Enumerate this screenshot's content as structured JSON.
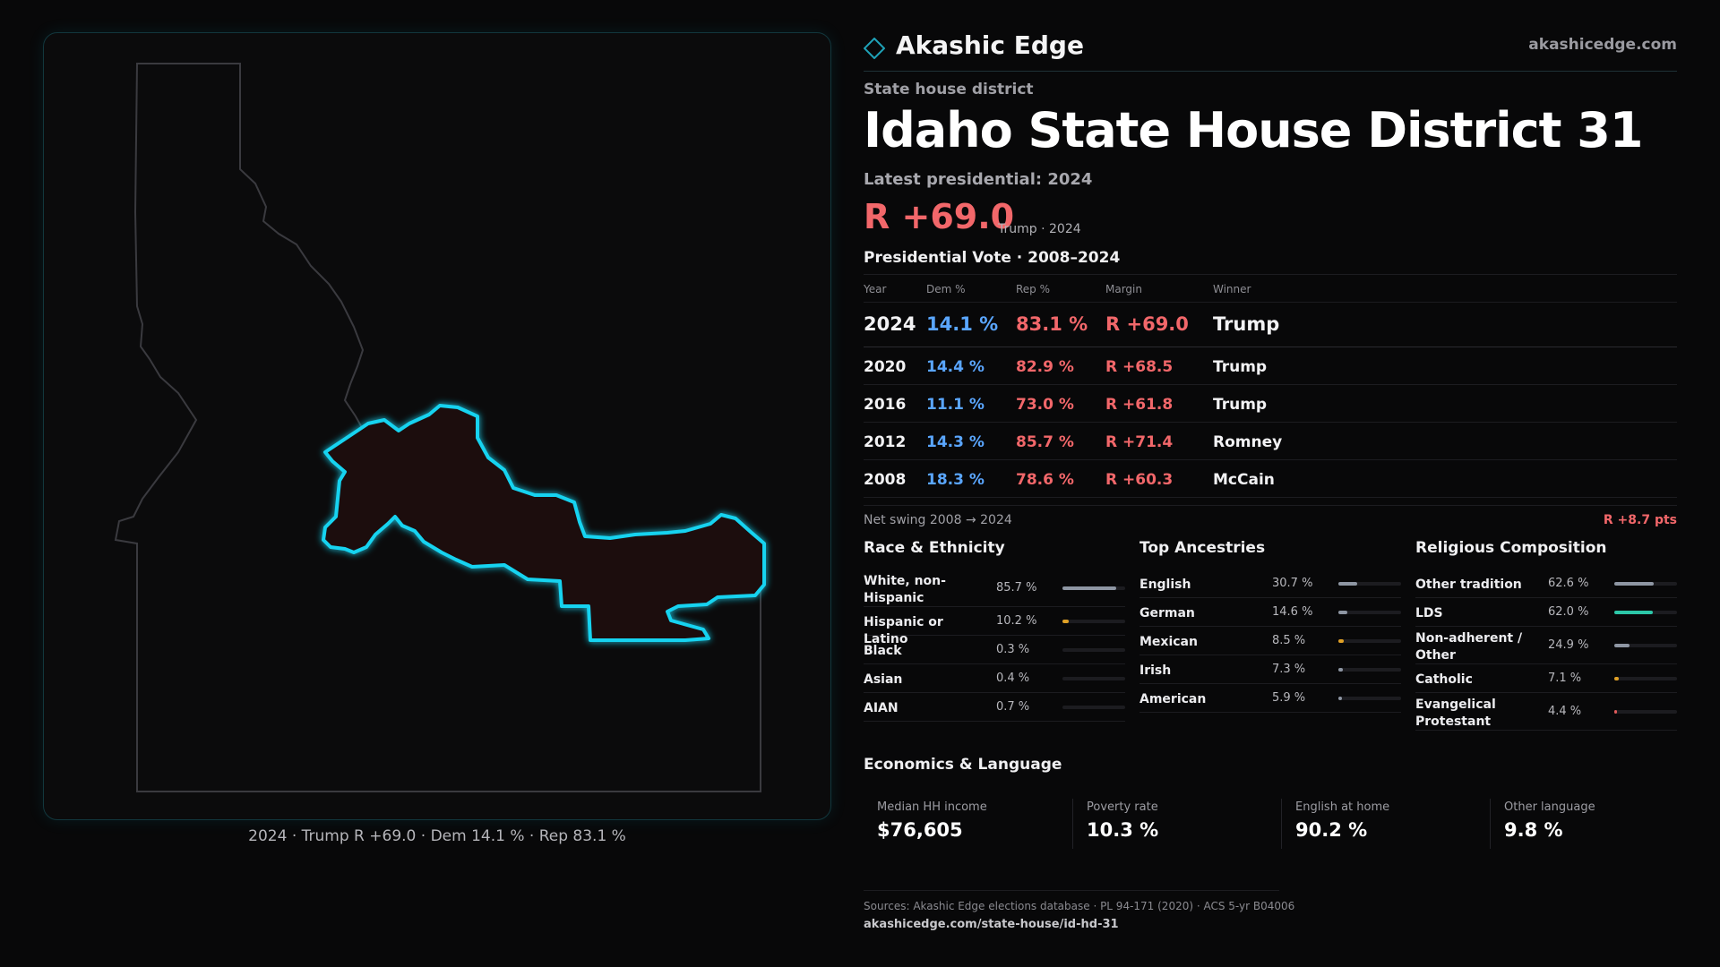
{
  "map": {
    "caption": "2024 · Trump R +69.0 · Dem 14.1 % · Rep 83.1 %",
    "highlight_color": "#19d3f0",
    "district_fill": "#1c1011",
    "state_outline_color": "#3a3a3f"
  },
  "brand": {
    "name": "Akashic Edge",
    "site": "akashicedge.com",
    "logo_icon": "diamond-outline-icon",
    "accent": "#1fa2b8"
  },
  "header": {
    "kicker": "State house district",
    "title": "Idaho State House District 31",
    "latest_label": "Latest presidential: 2024",
    "margin": "R +69.0",
    "margin_sub": "Trump · 2024"
  },
  "presidential": {
    "title": "Presidential Vote · 2008–2024",
    "columns": [
      "Year",
      "Dem %",
      "Rep %",
      "Margin",
      "Winner"
    ],
    "rows": [
      {
        "year": "2024",
        "dem": "14.1 %",
        "rep": "83.1 %",
        "margin": "R +69.0",
        "winner": "Trump"
      },
      {
        "year": "2020",
        "dem": "14.4 %",
        "rep": "82.9 %",
        "margin": "R +68.5",
        "winner": "Trump"
      },
      {
        "year": "2016",
        "dem": "11.1 %",
        "rep": "73.0 %",
        "margin": "R +61.8",
        "winner": "Trump"
      },
      {
        "year": "2012",
        "dem": "14.3 %",
        "rep": "85.7 %",
        "margin": "R +71.4",
        "winner": "Romney"
      },
      {
        "year": "2008",
        "dem": "18.3 %",
        "rep": "78.6 %",
        "margin": "R +60.3",
        "winner": "McCain"
      }
    ],
    "swing_label": "Net swing 2008 → 2024",
    "swing_value": "R +8.7 pts"
  },
  "race": {
    "title": "Race & Ethnicity",
    "items": [
      {
        "label": "White, non-Hispanic",
        "value": "85.7 %",
        "pct": 85.7,
        "color": "#8e96a3"
      },
      {
        "label": "Hispanic or Latino",
        "value": "10.2 %",
        "pct": 10.2,
        "color": "#e0a126"
      },
      {
        "label": "Black",
        "value": "0.3 %",
        "pct": 0.3,
        "color": "#3a3a40"
      },
      {
        "label": "Asian",
        "value": "0.4 %",
        "pct": 0.4,
        "color": "#3a3a40"
      },
      {
        "label": "AIAN",
        "value": "0.7 %",
        "pct": 0.7,
        "color": "#3a3a40"
      }
    ]
  },
  "ancestry": {
    "title": "Top Ancestries",
    "items": [
      {
        "label": "English",
        "value": "30.7 %",
        "pct": 30.7,
        "color": "#8e96a3"
      },
      {
        "label": "German",
        "value": "14.6 %",
        "pct": 14.6,
        "color": "#8e96a3"
      },
      {
        "label": "Mexican",
        "value": "8.5 %",
        "pct": 8.5,
        "color": "#e0a126"
      },
      {
        "label": "Irish",
        "value": "7.3 %",
        "pct": 7.3,
        "color": "#8e96a3"
      },
      {
        "label": "American",
        "value": "5.9 %",
        "pct": 5.9,
        "color": "#8e96a3"
      }
    ]
  },
  "religion": {
    "title": "Religious Composition",
    "items": [
      {
        "label": "Other tradition",
        "value": "62.6 %",
        "pct": 62.6,
        "color": "#8e96a3"
      },
      {
        "label": "LDS",
        "value": "62.0 %",
        "pct": 62.0,
        "color": "#2cc7a8"
      },
      {
        "label": "Non-adherent / Other",
        "value": "24.9 %",
        "pct": 24.9,
        "color": "#8e96a3"
      },
      {
        "label": "Catholic",
        "value": "7.1 %",
        "pct": 7.1,
        "color": "#e0a126"
      },
      {
        "label": "Evangelical Protestant",
        "value": "4.4 %",
        "pct": 4.4,
        "color": "#e05a5a"
      }
    ]
  },
  "economics": {
    "title": "Economics & Language",
    "cells": [
      {
        "label": "Median HH income",
        "value": "$76,605"
      },
      {
        "label": "Poverty rate",
        "value": "10.3 %"
      },
      {
        "label": "English at home",
        "value": "90.2 %"
      },
      {
        "label": "Other language",
        "value": "9.8 %"
      }
    ]
  },
  "sources": {
    "line": "Sources: Akashic Edge elections database · PL 94-171 (2020) · ACS 5-yr B04006",
    "url": "akashicedge.com/state-house/id-hd-31"
  }
}
